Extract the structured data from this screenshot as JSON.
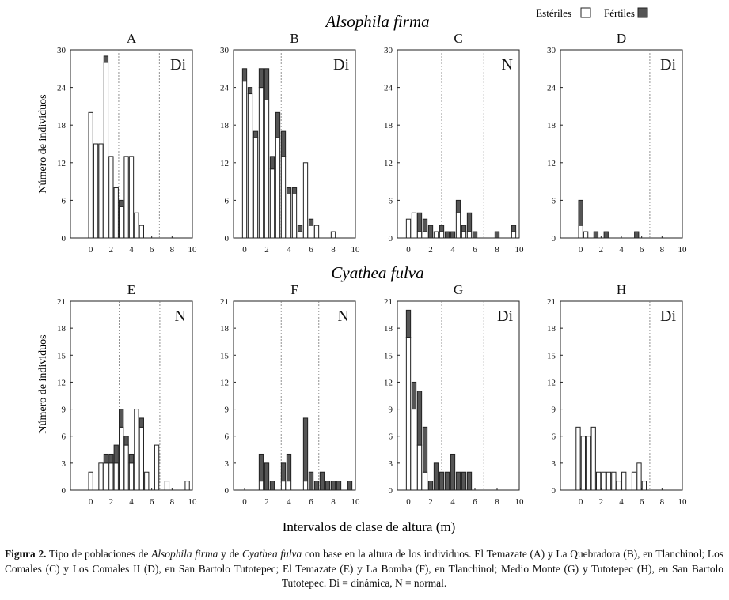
{
  "figure": {
    "species_titles": [
      "Alsophila firma",
      "Cyathea fulva"
    ],
    "legend": {
      "sterile_label": "Estériles",
      "fertile_label": "Fértiles"
    },
    "ylabel": "Número de individuos",
    "xlabel": "Intervalos de clase de altura (m)",
    "colors": {
      "sterile": "#ffffff",
      "fertile": "#555555",
      "axis": "#222222",
      "guide": "#777777"
    }
  },
  "caption": {
    "label": "Figura 2.",
    "p1": " Tipo de poblaciones de ",
    "sp1": "Alsophila firma",
    "p2": " y de ",
    "sp2": "Cyathea fulva",
    "p3": " con base en la altura de los individuos. El Temazate (A) y La Quebradora (B), en Tlanchinol; Los Comales (C) y Los Comales II (D), en San Bartolo Tutotepec; El Temazate (E) y La Bomba (F), en Tlanchinol; Medio Monte (G) y Tutotepec (H), en San Bartolo Tutotepec. Di = dinámica, N = normal."
  },
  "chart_data": [
    {
      "id": "A",
      "species": "Alsophila firma",
      "type": "bar",
      "stacked": true,
      "class_label": "Di",
      "ylim": [
        0,
        30
      ],
      "yticks": [
        0,
        6,
        12,
        18,
        24,
        30
      ],
      "xlim": [
        -2,
        10
      ],
      "xticks": [
        0,
        2,
        4,
        6,
        8,
        10
      ],
      "vlines": [
        2.75,
        6.75
      ],
      "x": [
        0,
        0.5,
        1,
        1.5,
        2,
        2.5,
        3,
        3.5,
        4,
        4.5,
        5
      ],
      "series": [
        {
          "name": "Estériles",
          "values": [
            20,
            15,
            15,
            28,
            13,
            8,
            5,
            13,
            13,
            4,
            2
          ]
        },
        {
          "name": "Fértiles",
          "values": [
            0,
            0,
            0,
            1,
            0,
            0,
            1,
            0,
            0,
            0,
            0
          ]
        }
      ]
    },
    {
      "id": "B",
      "species": "Alsophila firma",
      "type": "bar",
      "stacked": true,
      "class_label": "Di",
      "ylim": [
        0,
        30
      ],
      "yticks": [
        0,
        6,
        12,
        18,
        24,
        30
      ],
      "xlim": [
        -1,
        10
      ],
      "xticks": [
        0,
        2,
        4,
        6,
        8,
        10
      ],
      "vlines": [
        3.3,
        6.9
      ],
      "x": [
        0,
        0.5,
        1,
        1.5,
        2,
        2.5,
        3,
        3.5,
        4,
        4.5,
        5,
        5.5,
        6,
        6.5,
        7.5,
        8
      ],
      "series": [
        {
          "name": "Estériles",
          "values": [
            25,
            23,
            16,
            24,
            22,
            11,
            16,
            13,
            7,
            7,
            1,
            12,
            2,
            2,
            0,
            1
          ]
        },
        {
          "name": "Fértiles",
          "values": [
            2,
            1,
            1,
            3,
            5,
            2,
            4,
            4,
            1,
            1,
            1,
            0,
            1,
            0,
            0,
            0
          ]
        }
      ]
    },
    {
      "id": "C",
      "species": "Alsophila firma",
      "type": "bar",
      "stacked": true,
      "class_label": "N",
      "ylim": [
        0,
        30
      ],
      "yticks": [
        0,
        6,
        12,
        18,
        24,
        30
      ],
      "xlim": [
        -1,
        10
      ],
      "xticks": [
        0,
        2,
        4,
        6,
        8,
        10
      ],
      "vlines": [
        3.0,
        6.8
      ],
      "x": [
        0,
        0.5,
        1,
        1.5,
        2,
        2.5,
        3,
        3.5,
        4,
        4.5,
        5,
        5.5,
        6,
        8,
        9.5
      ],
      "series": [
        {
          "name": "Estériles",
          "values": [
            3,
            4,
            1,
            1,
            0,
            1,
            1,
            0,
            0,
            4,
            1,
            1,
            0,
            0,
            1
          ]
        },
        {
          "name": "Fértiles",
          "values": [
            0,
            0,
            3,
            2,
            2,
            0,
            1,
            1,
            1,
            2,
            1,
            3,
            1,
            1,
            1
          ]
        }
      ]
    },
    {
      "id": "D",
      "species": "Alsophila firma",
      "type": "bar",
      "stacked": true,
      "class_label": "Di",
      "ylim": [
        0,
        30
      ],
      "yticks": [
        0,
        6,
        12,
        18,
        24,
        30
      ],
      "xlim": [
        -2,
        10
      ],
      "xticks": [
        0,
        2,
        4,
        6,
        8,
        10
      ],
      "vlines": [
        2.8,
        6.8
      ],
      "x": [
        0,
        0.5,
        1.5,
        2.5,
        5.5
      ],
      "series": [
        {
          "name": "Estériles",
          "values": [
            2,
            1,
            0,
            0,
            0
          ]
        },
        {
          "name": "Fértiles",
          "values": [
            4,
            0,
            1,
            1,
            1
          ]
        }
      ]
    },
    {
      "id": "E",
      "species": "Cyathea fulva",
      "type": "bar",
      "stacked": true,
      "class_label": "N",
      "ylim": [
        0,
        21
      ],
      "yticks": [
        0,
        3,
        6,
        9,
        12,
        15,
        18,
        21
      ],
      "xlim": [
        -2,
        10
      ],
      "xticks": [
        0,
        2,
        4,
        6,
        8,
        10
      ],
      "vlines": [
        2.8,
        6.8
      ],
      "x": [
        0,
        1,
        1.5,
        2,
        2.5,
        3,
        3.5,
        4,
        4.5,
        5,
        5.5,
        6.5,
        7.5,
        9.5
      ],
      "series": [
        {
          "name": "Estériles",
          "values": [
            2,
            3,
            3,
            3,
            3,
            7,
            5,
            3,
            9,
            7,
            2,
            5,
            1,
            1
          ]
        },
        {
          "name": "Fértiles",
          "values": [
            0,
            0,
            1,
            1,
            2,
            2,
            1,
            1,
            0,
            1,
            0,
            0,
            0,
            0
          ]
        }
      ]
    },
    {
      "id": "F",
      "species": "Cyathea fulva",
      "type": "bar",
      "stacked": true,
      "class_label": "N",
      "ylim": [
        0,
        21
      ],
      "yticks": [
        0,
        3,
        6,
        9,
        12,
        15,
        18,
        21
      ],
      "xlim": [
        -1,
        10
      ],
      "xticks": [
        0,
        2,
        4,
        6,
        8,
        10
      ],
      "vlines": [
        3.3,
        6.7
      ],
      "x": [
        1.5,
        2,
        2.5,
        3.5,
        4,
        5.5,
        6,
        6.5,
        7,
        7.5,
        8,
        8.5,
        9.5
      ],
      "series": [
        {
          "name": "Estériles",
          "values": [
            1,
            0,
            0,
            1,
            1,
            1,
            0,
            0,
            0,
            0,
            0,
            0,
            0
          ]
        },
        {
          "name": "Fértiles",
          "values": [
            3,
            3,
            1,
            2,
            3,
            7,
            2,
            1,
            2,
            1,
            1,
            1,
            1
          ]
        }
      ]
    },
    {
      "id": "G",
      "species": "Cyathea fulva",
      "type": "bar",
      "stacked": true,
      "class_label": "Di",
      "ylim": [
        0,
        21
      ],
      "yticks": [
        0,
        3,
        6,
        9,
        12,
        15,
        18,
        21
      ],
      "xlim": [
        -1,
        10
      ],
      "xticks": [
        0,
        2,
        4,
        6,
        8,
        10
      ],
      "vlines": [
        3.0,
        6.8
      ],
      "x": [
        0,
        0.5,
        1,
        1.5,
        2,
        2.5,
        3,
        3.5,
        4,
        4.5,
        5,
        5.5
      ],
      "series": [
        {
          "name": "Estériles",
          "values": [
            17,
            9,
            5,
            2,
            0,
            0,
            0,
            0,
            0,
            0,
            0,
            0
          ]
        },
        {
          "name": "Fértiles",
          "values": [
            3,
            3,
            6,
            5,
            1,
            3,
            2,
            2,
            4,
            2,
            2,
            2
          ]
        }
      ]
    },
    {
      "id": "H",
      "species": "Cyathea fulva",
      "type": "bar",
      "stacked": true,
      "class_label": "Di",
      "ylim": [
        0,
        21
      ],
      "yticks": [
        0,
        3,
        6,
        9,
        12,
        15,
        18,
        21
      ],
      "xlim": [
        -2,
        10
      ],
      "xticks": [
        0,
        2,
        4,
        6,
        8,
        10
      ],
      "vlines": [
        2.8,
        6.8
      ],
      "x": [
        -0.25,
        0.25,
        0.75,
        1.25,
        1.75,
        2.25,
        2.75,
        3.25,
        3.75,
        4.25,
        4.75,
        5.25,
        5.75,
        6.25
      ],
      "series": [
        {
          "name": "Estériles",
          "values": [
            7,
            6,
            6,
            7,
            2,
            2,
            2,
            2,
            1,
            2,
            0,
            2,
            3,
            1
          ]
        },
        {
          "name": "Fértiles",
          "values": [
            0,
            0,
            0,
            0,
            0,
            0,
            0,
            0,
            0,
            0,
            0,
            0,
            0,
            0
          ]
        }
      ]
    }
  ]
}
